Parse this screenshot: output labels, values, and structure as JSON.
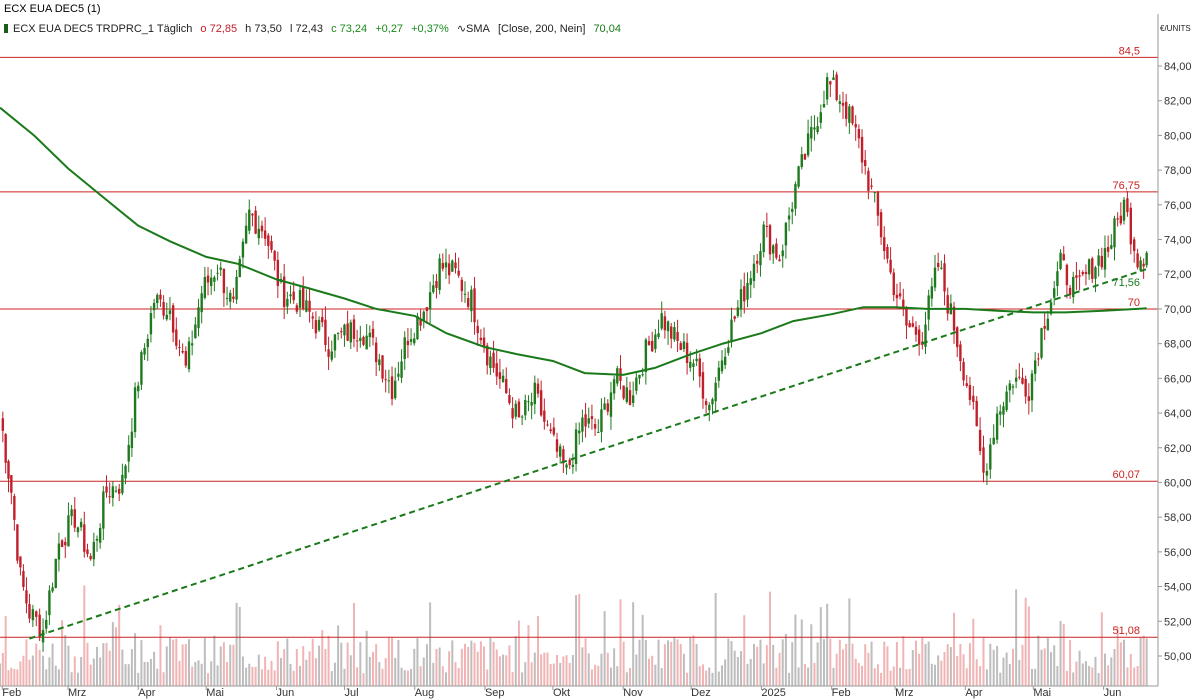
{
  "window_title": "ECX EUA DEC5 (1)",
  "legend": {
    "instrument": "ECX EUA DEC5 TRDPRC_1 Täglich",
    "open_label": "o",
    "open_value": "72,85",
    "high_label": "h",
    "high_value": "73,50",
    "low_label": "l",
    "low_value": "72,43",
    "close_label": "c",
    "close_value": "73,24",
    "change": "+0,27",
    "change_pct": "+0,37%",
    "sma_label": "SMA",
    "sma_params": "[Close, 200, Nein]",
    "sma_value": "70,04"
  },
  "unit_label": "€/UNITS",
  "colors": {
    "up": "#1f7a1f",
    "down": "#c0202a",
    "sma": "#1a7a1a",
    "hline": "#cc2222",
    "trend": "#1a7a1a",
    "volume_up": "#bdbdbd",
    "volume_down": "#f0b4b4",
    "axis": "#999999"
  },
  "chart_data": {
    "type": "candlestick",
    "y_axis_side": "right",
    "ylim": [
      48.5,
      85.5
    ],
    "y_ticks": [
      "50,00",
      "52,00",
      "54,00",
      "56,00",
      "58,00",
      "60,00",
      "62,00",
      "64,00",
      "66,00",
      "68,00",
      "70,00",
      "72,00",
      "74,00",
      "76,00",
      "78,00",
      "80,00",
      "82,00",
      "84,00"
    ],
    "x_labels": [
      "Feb",
      "Mrz",
      "Apr",
      "Mai",
      "Jun",
      "Jul",
      "Aug",
      "Sep",
      "Okt",
      "Nov",
      "Dez",
      "2025",
      "Feb",
      "Mrz",
      "Apr",
      "Mai",
      "Jun"
    ],
    "horizontal_lines": [
      {
        "label": "84,5",
        "value": 84.5
      },
      {
        "label": "76,75",
        "value": 76.75
      },
      {
        "label": "70",
        "value": 70.0
      },
      {
        "label": "60,07",
        "value": 60.07
      },
      {
        "label": "51,08",
        "value": 51.08
      }
    ],
    "trendline": {
      "style": "dashed",
      "label": "71,56",
      "points": [
        [
          "2024-02-13",
          51.0
        ],
        [
          "2025-06-20",
          72.3
        ]
      ]
    },
    "sma": {
      "name": "SMA [Close, 200, Nein]",
      "points": [
        [
          "2024-01-31",
          81.6
        ],
        [
          "2024-02-15",
          80.0
        ],
        [
          "2024-03-01",
          78.1
        ],
        [
          "2024-03-15",
          76.6
        ],
        [
          "2024-04-01",
          74.8
        ],
        [
          "2024-04-15",
          73.9
        ],
        [
          "2024-05-01",
          73.0
        ],
        [
          "2024-05-15",
          72.6
        ],
        [
          "2024-06-01",
          71.7
        ],
        [
          "2024-06-15",
          71.2
        ],
        [
          "2024-07-01",
          70.6
        ],
        [
          "2024-07-15",
          70.0
        ],
        [
          "2024-08-01",
          69.6
        ],
        [
          "2024-08-15",
          68.6
        ],
        [
          "2024-09-01",
          67.8
        ],
        [
          "2024-09-15",
          67.4
        ],
        [
          "2024-10-01",
          67.0
        ],
        [
          "2024-10-15",
          66.3
        ],
        [
          "2024-11-01",
          66.2
        ],
        [
          "2024-11-15",
          66.6
        ],
        [
          "2024-12-01",
          67.4
        ],
        [
          "2024-12-15",
          68.0
        ],
        [
          "2025-01-01",
          68.6
        ],
        [
          "2025-01-15",
          69.3
        ],
        [
          "2025-02-01",
          69.7
        ],
        [
          "2025-02-15",
          70.1
        ],
        [
          "2025-03-01",
          70.1
        ],
        [
          "2025-03-15",
          70.0
        ],
        [
          "2025-04-01",
          70.0
        ],
        [
          "2025-04-15",
          69.9
        ],
        [
          "2025-05-01",
          69.8
        ],
        [
          "2025-05-15",
          69.8
        ],
        [
          "2025-06-01",
          69.9
        ],
        [
          "2025-06-20",
          70.04
        ]
      ]
    },
    "closes": [
      [
        "2024-01-31",
        64.0
      ],
      [
        "2024-02-05",
        59.5
      ],
      [
        "2024-02-09",
        54.5
      ],
      [
        "2024-02-13",
        52.5
      ],
      [
        "2024-02-19",
        51.5
      ],
      [
        "2024-02-26",
        56.5
      ],
      [
        "2024-03-04",
        58.0
      ],
      [
        "2024-03-11",
        55.5
      ],
      [
        "2024-03-18",
        59.5
      ],
      [
        "2024-03-25",
        60.0
      ],
      [
        "2024-04-01",
        66.0
      ],
      [
        "2024-04-08",
        70.5
      ],
      [
        "2024-04-15",
        70.0
      ],
      [
        "2024-04-22",
        66.5
      ],
      [
        "2024-04-29",
        71.0
      ],
      [
        "2024-05-06",
        72.5
      ],
      [
        "2024-05-13",
        70.0
      ],
      [
        "2024-05-20",
        75.5
      ],
      [
        "2024-05-27",
        74.5
      ],
      [
        "2024-06-03",
        71.0
      ],
      [
        "2024-06-10",
        70.5
      ],
      [
        "2024-06-17",
        69.5
      ],
      [
        "2024-06-24",
        68.0
      ],
      [
        "2024-07-01",
        68.5
      ],
      [
        "2024-07-08",
        69.0
      ],
      [
        "2024-07-15",
        67.5
      ],
      [
        "2024-07-22",
        65.5
      ],
      [
        "2024-07-29",
        68.5
      ],
      [
        "2024-08-05",
        70.0
      ],
      [
        "2024-08-12",
        72.5
      ],
      [
        "2024-08-19",
        72.0
      ],
      [
        "2024-08-26",
        70.5
      ],
      [
        "2024-09-02",
        67.5
      ],
      [
        "2024-09-09",
        65.5
      ],
      [
        "2024-09-16",
        63.5
      ],
      [
        "2024-09-23",
        65.0
      ],
      [
        "2024-09-30",
        62.5
      ],
      [
        "2024-10-07",
        60.5
      ],
      [
        "2024-10-14",
        63.5
      ],
      [
        "2024-10-21",
        63.0
      ],
      [
        "2024-10-28",
        66.0
      ],
      [
        "2024-11-04",
        65.0
      ],
      [
        "2024-11-11",
        67.5
      ],
      [
        "2024-11-18",
        69.5
      ],
      [
        "2024-11-25",
        68.0
      ],
      [
        "2024-12-02",
        67.0
      ],
      [
        "2024-12-09",
        64.5
      ],
      [
        "2024-12-16",
        68.0
      ],
      [
        "2024-12-23",
        70.5
      ],
      [
        "2025-01-02",
        74.5
      ],
      [
        "2025-01-09",
        73.0
      ],
      [
        "2025-01-16",
        77.0
      ],
      [
        "2025-01-23",
        80.0
      ],
      [
        "2025-01-30",
        83.0
      ],
      [
        "2025-02-06",
        82.0
      ],
      [
        "2025-02-13",
        79.5
      ],
      [
        "2025-02-20",
        76.0
      ],
      [
        "2025-02-27",
        72.0
      ],
      [
        "2025-03-06",
        69.0
      ],
      [
        "2025-03-13",
        68.5
      ],
      [
        "2025-03-20",
        72.5
      ],
      [
        "2025-03-27",
        69.0
      ],
      [
        "2025-04-03",
        65.0
      ],
      [
        "2025-04-09",
        60.5
      ],
      [
        "2025-04-15",
        64.0
      ],
      [
        "2025-04-22",
        66.0
      ],
      [
        "2025-04-29",
        65.5
      ],
      [
        "2025-05-06",
        69.5
      ],
      [
        "2025-05-13",
        72.5
      ],
      [
        "2025-05-20",
        71.0
      ],
      [
        "2025-05-27",
        72.5
      ],
      [
        "2025-06-03",
        73.5
      ],
      [
        "2025-06-10",
        76.0
      ],
      [
        "2025-06-16",
        73.0
      ],
      [
        "2025-06-20",
        73.24
      ]
    ]
  }
}
